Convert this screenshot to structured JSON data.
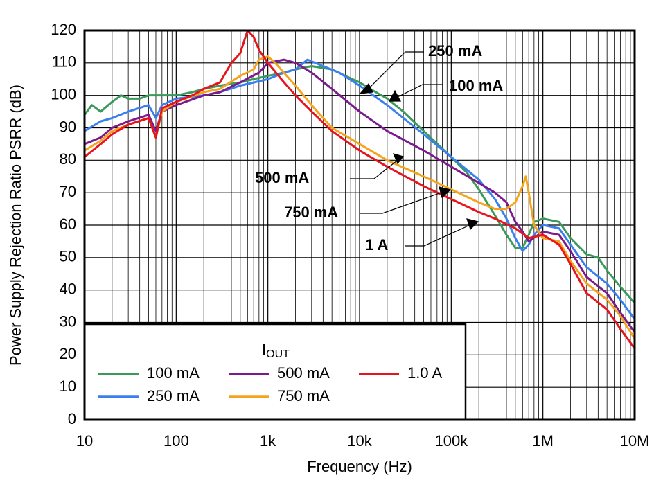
{
  "chart_data": {
    "type": "line",
    "x_label": "Frequency (Hz)",
    "y_label": "Power Supply Rejection Ratio PSRR (dB)",
    "xscale": "log",
    "xlim": [
      10,
      10000000
    ],
    "ylim": [
      0,
      120
    ],
    "xticks": [
      10,
      100,
      {
        "value": 1000,
        "label": "1k"
      },
      {
        "value": 10000,
        "label": "10k"
      },
      {
        "value": 100000,
        "label": "100k"
      },
      {
        "value": 1000000,
        "label": "1M"
      },
      {
        "value": 10000000,
        "label": "10M"
      }
    ],
    "xminorticks": [
      20,
      30,
      40,
      50,
      60,
      70,
      80,
      90,
      200,
      300,
      400,
      500,
      600,
      700,
      800,
      900,
      2000,
      3000,
      4000,
      5000,
      6000,
      7000,
      8000,
      9000,
      20000,
      30000,
      40000,
      50000,
      60000,
      70000,
      80000,
      90000,
      200000,
      300000,
      400000,
      500000,
      600000,
      700000,
      800000,
      900000,
      2000000,
      3000000,
      4000000,
      5000000,
      6000000,
      7000000,
      8000000,
      9000000
    ],
    "yticks": [
      0,
      10,
      20,
      30,
      40,
      50,
      60,
      70,
      80,
      90,
      100,
      110,
      120
    ],
    "grid": true,
    "legend_title": {
      "main": "I",
      "sub": "OUT"
    },
    "legend_position": "lower left",
    "annotations": [
      "250 mA",
      "100 mA",
      "500 mA",
      "750 mA",
      "1 A"
    ],
    "series": [
      {
        "name": "100 mA",
        "color": "#3a9a5c",
        "x": [
          10,
          12,
          15,
          20,
          25,
          30,
          40,
          50,
          70,
          100,
          150,
          200,
          300,
          500,
          700,
          1000,
          1500,
          2000,
          3000,
          5000,
          7000,
          10000,
          15000,
          20000,
          30000,
          50000,
          100000,
          150000,
          200000,
          300000,
          400000,
          500000,
          600000,
          700000,
          800000,
          1000000,
          1500000,
          2000000,
          3000000,
          4000000,
          5000000,
          7000000,
          10000000
        ],
        "values": [
          94,
          97,
          95,
          98,
          100,
          99,
          99,
          100,
          100,
          100,
          101,
          102,
          103,
          104,
          105,
          106,
          107,
          108,
          109,
          108,
          106,
          104,
          101,
          99,
          95,
          89,
          81,
          76,
          71,
          63,
          57,
          53,
          53,
          57,
          61,
          62,
          61,
          56,
          51,
          50,
          46,
          41,
          36
        ]
      },
      {
        "name": "250 mA",
        "color": "#3a7ff0",
        "x": [
          10,
          15,
          20,
          30,
          50,
          60,
          70,
          100,
          200,
          300,
          500,
          1000,
          1500,
          2000,
          2700,
          4000,
          6000,
          10000,
          20000,
          50000,
          100000,
          200000,
          300000,
          400000,
          500000,
          600000,
          700000,
          800000,
          1000000,
          1500000,
          2000000,
          3000000,
          5000000,
          7000000,
          10000000
        ],
        "values": [
          89,
          92,
          93,
          95,
          97,
          93,
          97,
          99,
          100,
          101,
          103,
          105,
          107,
          108,
          111,
          109,
          107,
          103,
          97,
          88,
          81,
          74,
          68,
          62,
          56,
          52,
          54,
          57,
          60,
          59,
          54,
          47,
          42,
          37,
          31
        ]
      },
      {
        "name": "500 mA",
        "color": "#7a1a8c",
        "x": [
          10,
          15,
          20,
          30,
          50,
          60,
          70,
          100,
          200,
          300,
          500,
          800,
          1000,
          1500,
          2000,
          3000,
          5000,
          10000,
          20000,
          50000,
          100000,
          200000,
          300000,
          400000,
          500000,
          600000,
          700000,
          1000000,
          1500000,
          2000000,
          3000000,
          5000000,
          7000000,
          10000000
        ],
        "values": [
          85,
          87,
          90,
          92,
          94,
          89,
          95,
          97,
          100,
          101,
          104,
          107,
          110,
          111,
          110,
          107,
          102,
          95,
          89,
          83,
          78,
          73,
          70,
          67,
          61,
          58,
          55,
          58,
          57,
          52,
          44,
          39,
          33,
          27
        ]
      },
      {
        "name": "750 mA",
        "color": "#f5a31a",
        "x": [
          10,
          15,
          20,
          30,
          50,
          60,
          70,
          100,
          200,
          300,
          500,
          700,
          800,
          1000,
          1200,
          2000,
          3000,
          5000,
          10000,
          20000,
          50000,
          100000,
          200000,
          300000,
          400000,
          500000,
          600000,
          650000,
          700000,
          800000,
          1000000,
          1500000,
          2000000,
          3000000,
          5000000,
          7000000,
          10000000
        ],
        "values": [
          83,
          86,
          89,
          91,
          93,
          87,
          95,
          98,
          101,
          102,
          106,
          108,
          111,
          112,
          110,
          103,
          97,
          90,
          85,
          80,
          75,
          71,
          67,
          65,
          65,
          67,
          72,
          75,
          70,
          60,
          56,
          55,
          49,
          42,
          37,
          32,
          25
        ]
      },
      {
        "name": "1.0 A",
        "color": "#e8141c",
        "x": [
          10,
          15,
          20,
          30,
          50,
          60,
          70,
          100,
          150,
          200,
          300,
          400,
          500,
          600,
          700,
          800,
          1000,
          1500,
          2000,
          3000,
          5000,
          10000,
          20000,
          50000,
          100000,
          200000,
          300000,
          500000,
          700000,
          1000000,
          1500000,
          2000000,
          3000000,
          5000000,
          7000000,
          10000000
        ],
        "values": [
          81,
          85,
          88,
          91,
          93,
          87,
          96,
          98,
          100,
          102,
          104,
          110,
          113,
          120,
          118,
          114,
          110,
          104,
          100,
          95,
          89,
          83,
          78,
          72,
          68,
          64,
          62,
          59,
          56,
          57,
          54,
          48,
          39,
          34,
          28,
          22
        ]
      }
    ]
  }
}
